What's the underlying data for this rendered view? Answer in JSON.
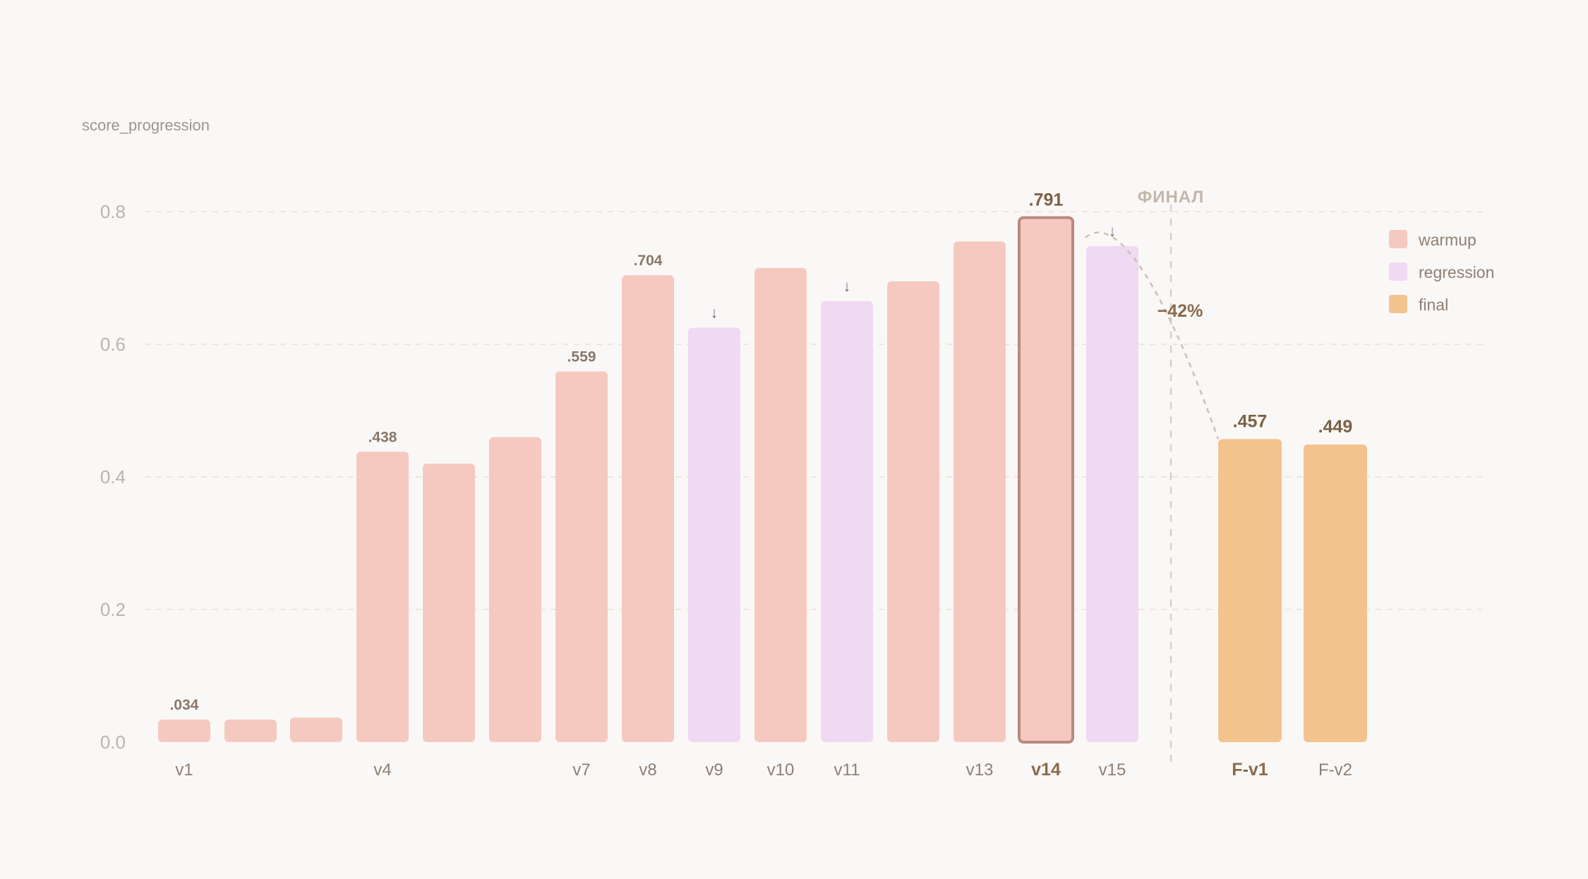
{
  "chart_data": {
    "type": "bar",
    "title": "score_progression",
    "xlabel": "",
    "ylabel": "",
    "ylim": [
      0,
      0.8
    ],
    "yticks": [
      "0.0",
      "0.2",
      "0.4",
      "0.6",
      "0.8"
    ],
    "grid": true,
    "legend_position": "top-right",
    "legend": [
      {
        "name": "warmup",
        "color": "#f6c9c0"
      },
      {
        "name": "regression",
        "color": "#f0d9f3"
      },
      {
        "name": "final",
        "color": "#f3c38e"
      }
    ],
    "bars": [
      {
        "label": "v1",
        "value": 0.034,
        "group": "warmup",
        "value_label": ".034"
      },
      {
        "label": "",
        "value": 0.034,
        "group": "warmup"
      },
      {
        "label": "",
        "value": 0.037,
        "group": "warmup"
      },
      {
        "label": "v4",
        "value": 0.438,
        "group": "warmup",
        "value_label": ".438"
      },
      {
        "label": "",
        "value": 0.42,
        "group": "warmup"
      },
      {
        "label": "",
        "value": 0.46,
        "group": "warmup"
      },
      {
        "label": "v7",
        "value": 0.559,
        "group": "warmup",
        "value_label": ".559"
      },
      {
        "label": "v8",
        "value": 0.704,
        "group": "warmup",
        "value_label": ".704"
      },
      {
        "label": "v9",
        "value": 0.625,
        "group": "regression",
        "arrow": "↓"
      },
      {
        "label": "v10",
        "value": 0.715,
        "group": "warmup"
      },
      {
        "label": "v11",
        "value": 0.665,
        "group": "regression",
        "arrow": "↓"
      },
      {
        "label": "",
        "value": 0.695,
        "group": "warmup"
      },
      {
        "label": "v13",
        "value": 0.755,
        "group": "warmup"
      },
      {
        "label": "v14",
        "value": 0.791,
        "group": "warmup",
        "value_label": ".791",
        "highlight": true
      },
      {
        "label": "v15",
        "value": 0.748,
        "group": "regression",
        "arrow": "↓"
      },
      {
        "label": "F-v1",
        "value": 0.457,
        "group": "final",
        "value_label": ".457",
        "bold_label": true
      },
      {
        "label": "F-v2",
        "value": 0.449,
        "group": "final",
        "value_label": ".449"
      }
    ],
    "annotations": {
      "divider_label": "ФИНАЛ",
      "delta_label": "−42%"
    }
  },
  "colors": {
    "background": "#faf8f6",
    "highlight_border": "#b88a7e",
    "grid": "#ebe6e1"
  }
}
